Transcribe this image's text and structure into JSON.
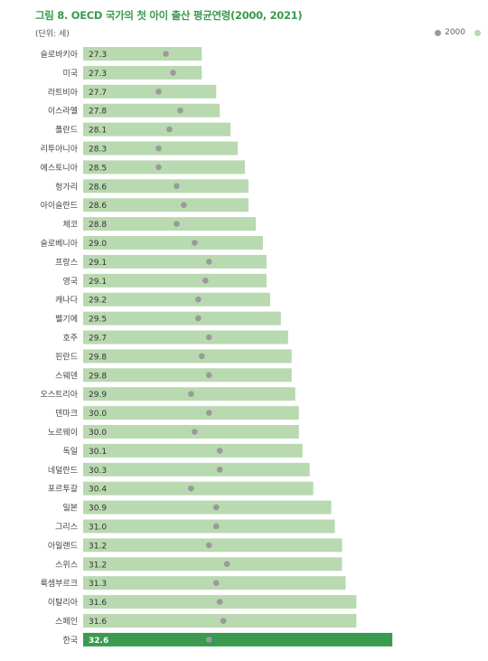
{
  "title": "그림 8. OECD 국가의 첫 아이 출산 평균연령(2000, 2021)",
  "unit": "(단위: 세)",
  "legend": [
    {
      "label": "2000",
      "color": "#9a9a9a"
    },
    {
      "label": "",
      "color": "#b9d9b0"
    }
  ],
  "colors": {
    "bar": "#b9d9b0",
    "highlight_bar": "#3b9a4f",
    "dot": "#9a9a9a",
    "label": "#444444",
    "title": "#3a9a4f"
  },
  "chart_data": {
    "type": "bar",
    "orientation": "horizontal",
    "title": "그림 8. OECD 국가의 첫 아이 출산 평균연령(2000, 2021)",
    "xlim": [
      24,
      33.5
    ],
    "highlight": "한국",
    "categories": [
      "슬로바키아",
      "미국",
      "라트비아",
      "이스라엘",
      "폴란드",
      "리투아니아",
      "에스토니아",
      "헝가리",
      "아이슬란드",
      "체코",
      "슬로베니아",
      "프랑스",
      "영국",
      "캐나다",
      "벨기에",
      "호주",
      "핀란드",
      "스웨덴",
      "오스트리아",
      "덴마크",
      "노르웨이",
      "독일",
      "네덜란드",
      "포르투갈",
      "일본",
      "그리스",
      "아일랜드",
      "스위스",
      "룩셈부르크",
      "이탈리아",
      "스페인",
      "한국"
    ],
    "series": [
      {
        "name": "",
        "values": [
          27.3,
          27.3,
          27.7,
          27.8,
          28.1,
          28.3,
          28.5,
          28.6,
          28.6,
          28.8,
          29.0,
          29.1,
          29.1,
          29.2,
          29.5,
          29.7,
          29.8,
          29.8,
          29.9,
          30.0,
          30.0,
          30.1,
          30.3,
          30.4,
          30.9,
          31.0,
          31.2,
          31.2,
          31.3,
          31.6,
          31.6,
          32.6
        ]
      },
      {
        "name": "2000",
        "values": [
          26.3,
          26.5,
          26.1,
          26.7,
          26.4,
          26.1,
          26.1,
          26.6,
          26.8,
          26.6,
          27.1,
          27.5,
          27.4,
          27.2,
          27.2,
          27.5,
          27.3,
          27.5,
          27.0,
          27.5,
          27.1,
          27.8,
          27.8,
          27.0,
          27.7,
          27.7,
          27.5,
          28.0,
          27.7,
          27.8,
          27.9,
          27.5
        ]
      }
    ]
  }
}
